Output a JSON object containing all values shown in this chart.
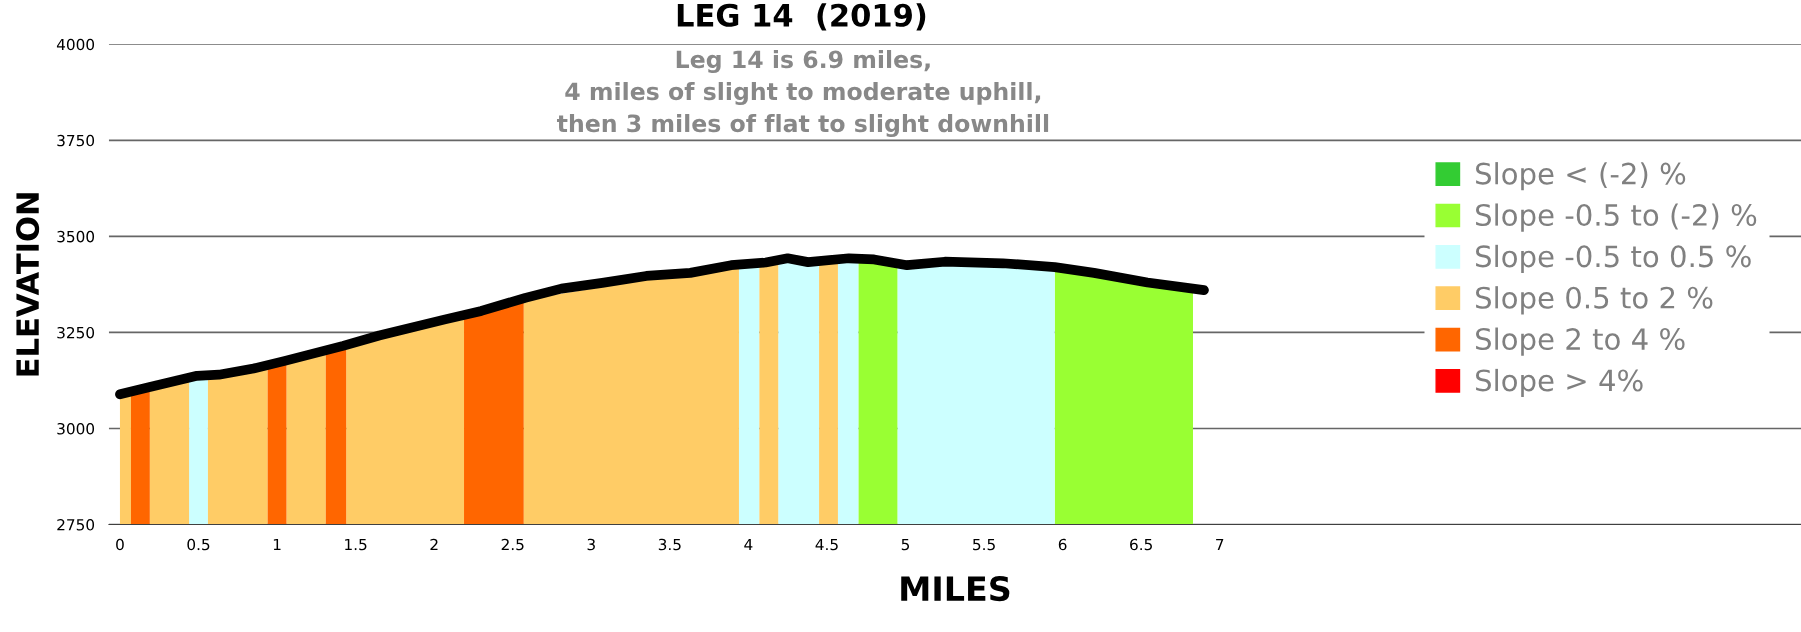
{
  "chart_data": {
    "type": "area",
    "title": "LEG 14  (2019)",
    "subtitle": "Leg 14 is 6.9 miles,\n4 miles of slight to moderate uphill,\nthen 3 miles of flat to slight downhill",
    "xlabel": "MILES",
    "ylabel": "ELEVATION",
    "xlim": [
      -0.07,
      10.7
    ],
    "xticks": [
      0,
      0.5,
      1,
      1.5,
      2,
      2.5,
      3,
      3.5,
      4,
      4.5,
      5,
      5.5,
      6,
      6.5,
      7
    ],
    "ylim": [
      2750,
      4000
    ],
    "yticks": [
      2750,
      3000,
      3250,
      3500,
      3750,
      4000
    ],
    "grid": "y",
    "legend": "right",
    "series": [
      {
        "name": "Slope < (-2) %",
        "color": "#33cc33"
      },
      {
        "name": "Slope -0.5 to (-2) %",
        "color": "#99ff33",
        "x": [
          4.7,
          4.95,
          5.2,
          5.95,
          6.83
        ],
        "values": [
          3440,
          3430,
          null,
          3420,
          3365
        ]
      },
      {
        "name": "Slope -0.5 to 0.5 %",
        "color": "#ccffff",
        "x": [
          0.44,
          0.56,
          1.0,
          3.94,
          4.07,
          4.1,
          4.19,
          4.45,
          4.5,
          4.57,
          4.7,
          4.8,
          4.95,
          5.95
        ],
        "values": [
          3130,
          3135,
          null,
          3425,
          3430,
          null,
          3435,
          3435,
          null,
          3440,
          3440,
          null,
          3430,
          3420
        ]
      },
      {
        "name": "Slope 0.5 to 2 %",
        "color": "#ffcc66",
        "x": [
          0,
          0.07,
          0.1,
          0.19,
          0.44,
          0.5,
          0.56,
          0.94,
          1.0,
          1.06,
          1.31,
          1.4,
          1.44,
          2.19,
          2.3,
          2.57,
          3.94,
          4.0,
          4.07,
          4.19,
          4.3,
          4.45,
          4.57
        ],
        "values": [
          3100,
          3100,
          null,
          3110,
          3130,
          null,
          3135,
          3155,
          null,
          3175,
          3200,
          null,
          3215,
          3295,
          null,
          3335,
          3425,
          null,
          3430,
          3435,
          null,
          3435,
          3440
        ]
      },
      {
        "name": "Slope 2 to 4 %",
        "color": "#ff6600",
        "x": [
          0.07,
          0.19,
          0.5,
          0.94,
          1.06,
          1.2,
          1.31,
          1.44,
          2.0,
          2.19,
          2.57
        ],
        "values": [
          3100,
          3110,
          null,
          3155,
          3175,
          null,
          3200,
          3215,
          null,
          3295,
          3335
        ]
      },
      {
        "name": "Slope > 4%",
        "color": "#ff0000"
      },
      {
        "type": "line",
        "color": "#000000",
        "line_style": "solid",
        "marker": "none",
        "x": [
          0.0,
          0.19,
          0.49,
          0.63,
          0.85,
          1.05,
          1.42,
          1.65,
          2.07,
          2.3,
          2.58,
          2.81,
          3.07,
          3.35,
          3.63,
          3.89,
          4.11,
          4.25,
          4.38,
          4.64,
          4.8,
          5.01,
          5.25,
          5.62,
          5.95,
          6.2,
          6.54,
          6.9
        ],
        "values": [
          3089,
          3108,
          3137,
          3140,
          3156,
          3176,
          3215,
          3242,
          3284,
          3306,
          3340,
          3364,
          3379,
          3397,
          3405,
          3425,
          3432,
          3443,
          3433,
          3443,
          3440,
          3425,
          3434,
          3430,
          3420,
          3405,
          3380,
          3360
        ]
      }
    ]
  }
}
